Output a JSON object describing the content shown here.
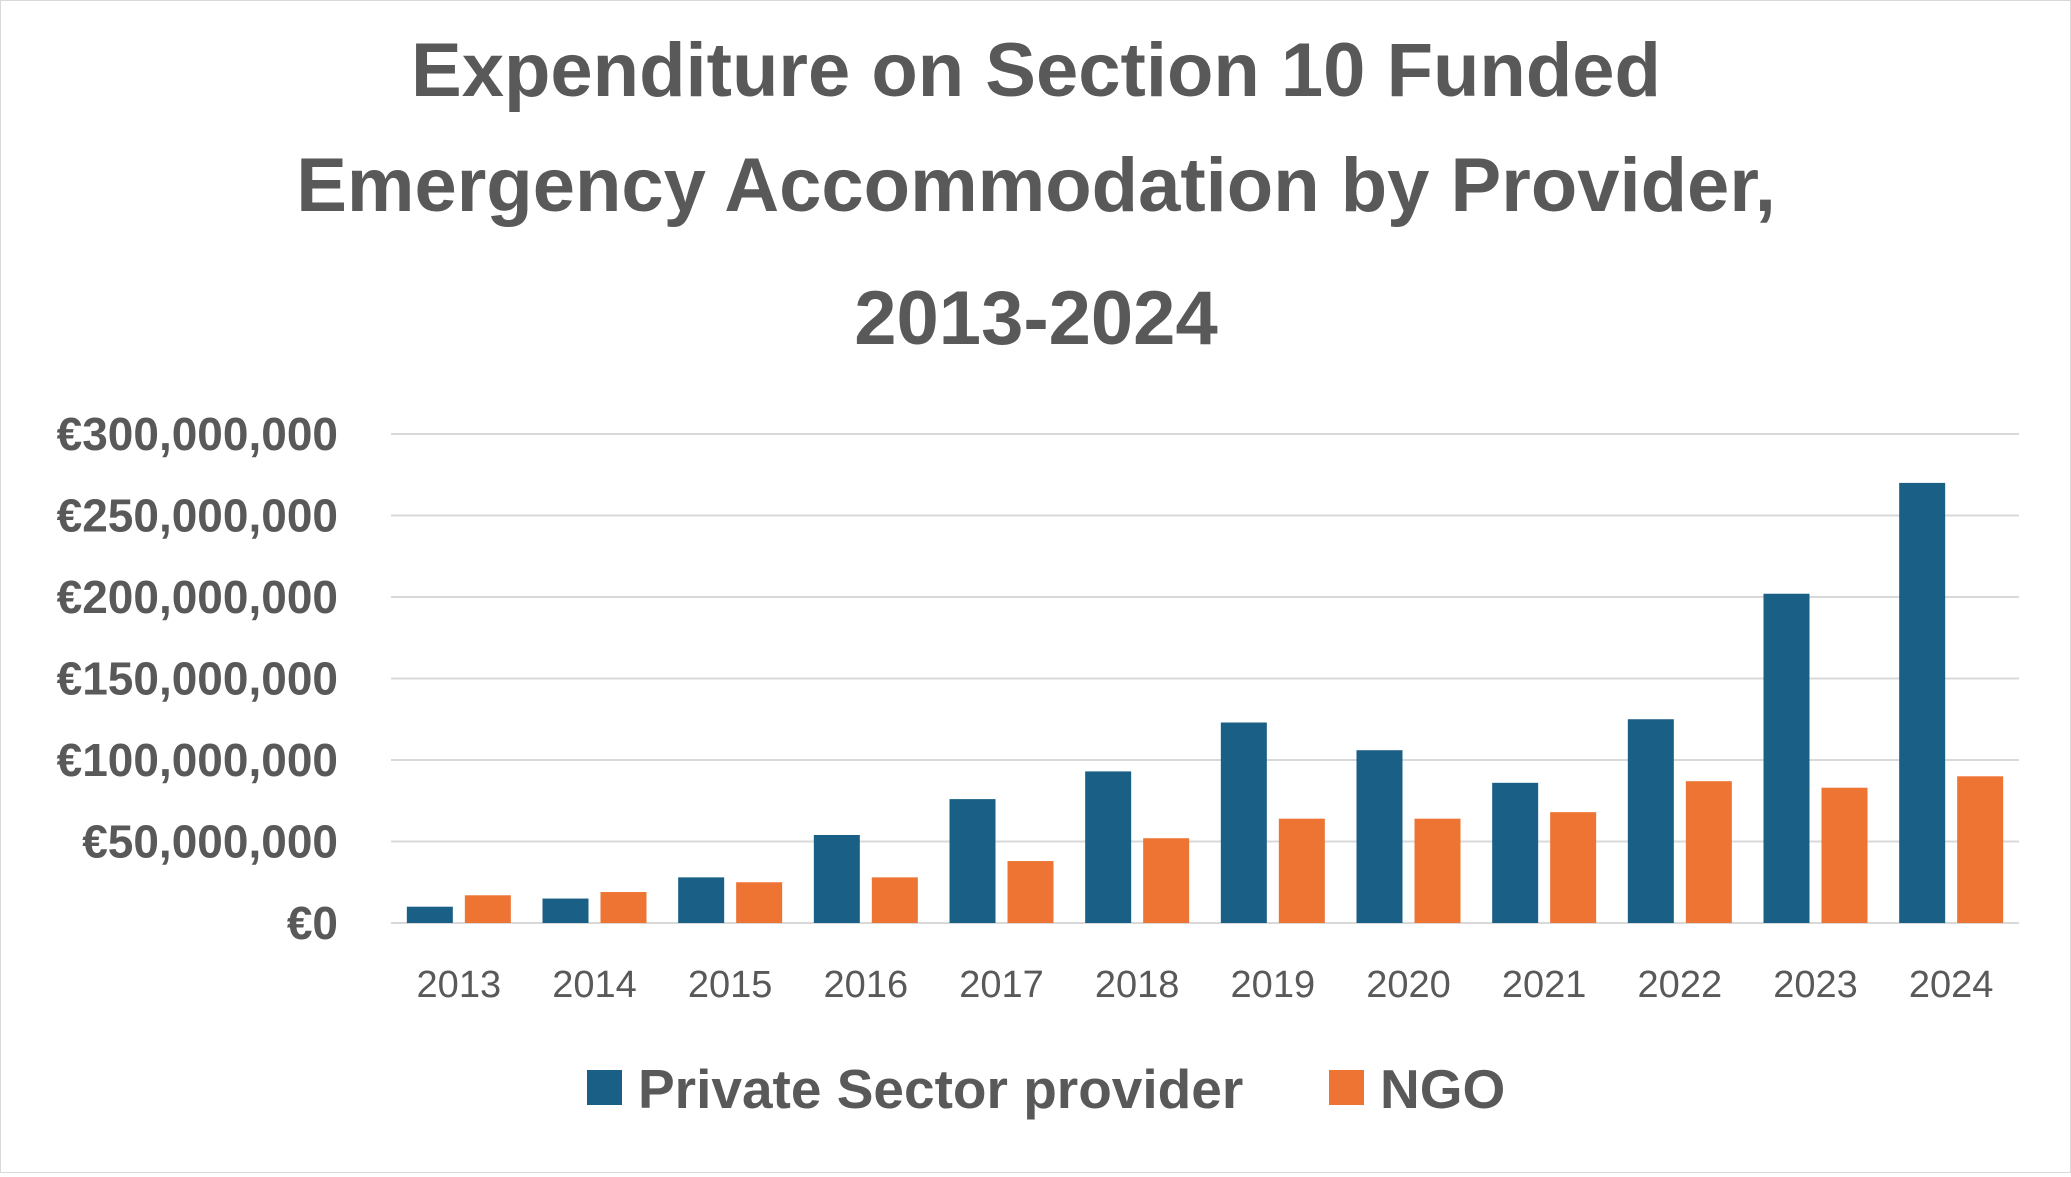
{
  "chart_data": {
    "type": "bar",
    "title_lines": [
      "Expenditure on Section 10 Funded",
      "Emergency Accommodation by Provider,",
      "2013-2024"
    ],
    "xlabel": "",
    "ylabel": "",
    "categories": [
      "2013",
      "2014",
      "2015",
      "2016",
      "2017",
      "2018",
      "2019",
      "2020",
      "2021",
      "2022",
      "2023",
      "2024"
    ],
    "series": [
      {
        "name": "Private Sector provider",
        "color": "#1a5f86",
        "values": [
          10000000,
          15000000,
          28000000,
          54000000,
          76000000,
          93000000,
          123000000,
          106000000,
          86000000,
          125000000,
          202000000,
          270000000
        ]
      },
      {
        "name": "NGO",
        "color": "#ed7432",
        "values": [
          17000000,
          19000000,
          25000000,
          28000000,
          38000000,
          52000000,
          64000000,
          64000000,
          68000000,
          87000000,
          83000000,
          90000000
        ]
      }
    ],
    "ylim": [
      0,
      300000000
    ],
    "yticks": [
      0,
      50000000,
      100000000,
      150000000,
      200000000,
      250000000,
      300000000
    ],
    "ytick_labels": [
      "€0",
      "€50,000,000",
      "€100,000,000",
      "€150,000,000",
      "€200,000,000",
      "€250,000,000",
      "€300,000,000"
    ],
    "grid": true,
    "legend_position": "bottom"
  }
}
